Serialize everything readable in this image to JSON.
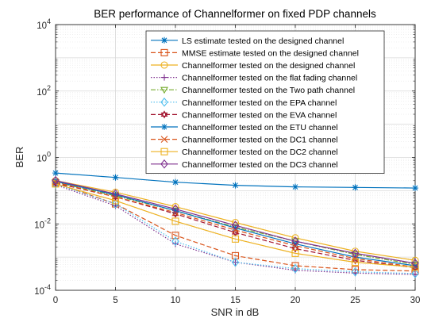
{
  "chart_data": {
    "type": "line",
    "title": "BER performance of Channelformer on fixed PDP channels",
    "xlabel": "SNR in dB",
    "ylabel": "BER",
    "yscale": "log",
    "xlim": [
      0,
      30
    ],
    "ylim": [
      0.0001,
      10000
    ],
    "x_ticks": [
      0,
      5,
      10,
      15,
      20,
      25,
      30
    ],
    "x_tick_labels": [
      "0",
      "5",
      "10",
      "15",
      "20",
      "25",
      "30"
    ],
    "y_ticks": [
      {
        "value": 0.0001,
        "base": "10",
        "exp": "-4"
      },
      {
        "value": 0.01,
        "base": "10",
        "exp": "-2"
      },
      {
        "value": 1,
        "base": "10",
        "exp": "0"
      },
      {
        "value": 100,
        "base": "10",
        "exp": "2"
      },
      {
        "value": 10000,
        "base": "10",
        "exp": "4"
      }
    ],
    "grid": true,
    "minor_grid": true,
    "legend_position": "top-right",
    "x": [
      0,
      5,
      10,
      15,
      20,
      25,
      30
    ],
    "series": [
      {
        "name": "LS estimate tested on the designed channel",
        "color": "#0072BD",
        "dash": "solid",
        "marker": "asterisk",
        "values": [
          0.34,
          0.25,
          0.18,
          0.145,
          0.13,
          0.125,
          0.12
        ]
      },
      {
        "name": "MMSE estimate tested on the designed channel",
        "color": "#D95319",
        "dash": "dashed",
        "marker": "square",
        "values": [
          0.17,
          0.04,
          0.0045,
          0.0011,
          0.00055,
          0.00042,
          0.00038
        ]
      },
      {
        "name": "Channelformer tested on the designed channel",
        "color": "#EDB120",
        "dash": "solid",
        "marker": "circle",
        "values": [
          0.2,
          0.09,
          0.033,
          0.011,
          0.0038,
          0.0015,
          0.0008
        ]
      },
      {
        "name": "Channelformer tested on the flat fading channel",
        "color": "#7E2F8E",
        "dash": "dotted",
        "marker": "plus",
        "values": [
          0.15,
          0.035,
          0.0025,
          0.0007,
          0.0004,
          0.00033,
          0.0003
        ]
      },
      {
        "name": "Channelformer tested on the Two path channel",
        "color": "#77AC30",
        "dash": "dashdot",
        "marker": "triangle-down",
        "values": [
          0.18,
          0.07,
          0.025,
          0.008,
          0.003,
          0.0012,
          0.0006
        ]
      },
      {
        "name": "Channelformer tested on the EPA channel",
        "color": "#4DBEEE",
        "dash": "dotted",
        "marker": "diamond",
        "values": [
          0.16,
          0.04,
          0.003,
          0.0007,
          0.00045,
          0.00036,
          0.00032
        ]
      },
      {
        "name": "Channelformer tested on the EVA channel",
        "color": "#A2142F",
        "dash": "dashed",
        "marker": "hexagram",
        "values": [
          0.17,
          0.065,
          0.02,
          0.0055,
          0.0018,
          0.0008,
          0.00048
        ]
      },
      {
        "name": "Channelformer tested on the ETU channel",
        "color": "#0072BD",
        "dash": "solid",
        "marker": "asterisk",
        "values": [
          0.19,
          0.075,
          0.025,
          0.0075,
          0.0025,
          0.001,
          0.00055
        ]
      },
      {
        "name": "Channelformer tested on the DC1 channel",
        "color": "#D95319",
        "dash": "dashed",
        "marker": "x",
        "values": [
          0.18,
          0.065,
          0.022,
          0.0065,
          0.0022,
          0.0009,
          0.0005
        ]
      },
      {
        "name": "Channelformer tested on the DC2 channel",
        "color": "#EDB120",
        "dash": "solid",
        "marker": "square",
        "values": [
          0.16,
          0.05,
          0.012,
          0.0035,
          0.0013,
          0.0007,
          0.0005
        ]
      },
      {
        "name": "Channelformer tested on the DC3 channel",
        "color": "#7E2F8E",
        "dash": "solid",
        "marker": "diamond",
        "values": [
          0.2,
          0.08,
          0.028,
          0.009,
          0.003,
          0.0013,
          0.00065
        ]
      }
    ]
  }
}
